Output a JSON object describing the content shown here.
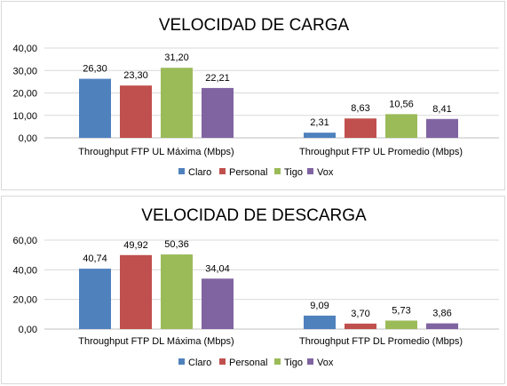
{
  "chart_data": [
    {
      "type": "bar",
      "title": "VELOCIDAD DE CARGA",
      "categories": [
        "Throughput FTP UL Máxima (Mbps)",
        "Throughput FTP UL Promedio (Mbps)"
      ],
      "series": [
        {
          "name": "Claro",
          "color": "#4f81bd",
          "values": [
            26.3,
            2.31
          ],
          "labels": [
            "26,30",
            "2,31"
          ]
        },
        {
          "name": "Personal",
          "color": "#c0504d",
          "values": [
            23.3,
            8.63
          ],
          "labels": [
            "23,30",
            "8,63"
          ]
        },
        {
          "name": "Tigo",
          "color": "#9bbb59",
          "values": [
            31.2,
            10.56
          ],
          "labels": [
            "31,20",
            "10,56"
          ]
        },
        {
          "name": "Vox",
          "color": "#8064a2",
          "values": [
            22.21,
            8.41
          ],
          "labels": [
            "22,21",
            "8,41"
          ]
        }
      ],
      "ylim": [
        0,
        40
      ],
      "yticks": [
        "0,00",
        "10,00",
        "20,00",
        "30,00",
        "40,00"
      ],
      "legend": "bottom",
      "grid": true
    },
    {
      "type": "bar",
      "title": "VELOCIDAD DE DESCARGA",
      "categories": [
        "Throughput FTP DL Máxima (Mbps)",
        "Throughput FTP DL Promedio (Mbps)"
      ],
      "series": [
        {
          "name": "Claro",
          "color": "#4f81bd",
          "values": [
            40.74,
            9.09
          ],
          "labels": [
            "40,74",
            "9,09"
          ]
        },
        {
          "name": "Personal",
          "color": "#c0504d",
          "values": [
            49.92,
            3.7
          ],
          "labels": [
            "49,92",
            "3,70"
          ]
        },
        {
          "name": "Tigo",
          "color": "#9bbb59",
          "values": [
            50.36,
            5.73
          ],
          "labels": [
            "50,36",
            "5,73"
          ]
        },
        {
          "name": "Vox",
          "color": "#8064a2",
          "values": [
            34.04,
            3.86
          ],
          "labels": [
            "34,04",
            "3,86"
          ]
        }
      ],
      "ylim": [
        0,
        60
      ],
      "yticks": [
        "0,00",
        "20,00",
        "40,00",
        "60,00"
      ],
      "legend": "bottom",
      "grid": true
    }
  ]
}
